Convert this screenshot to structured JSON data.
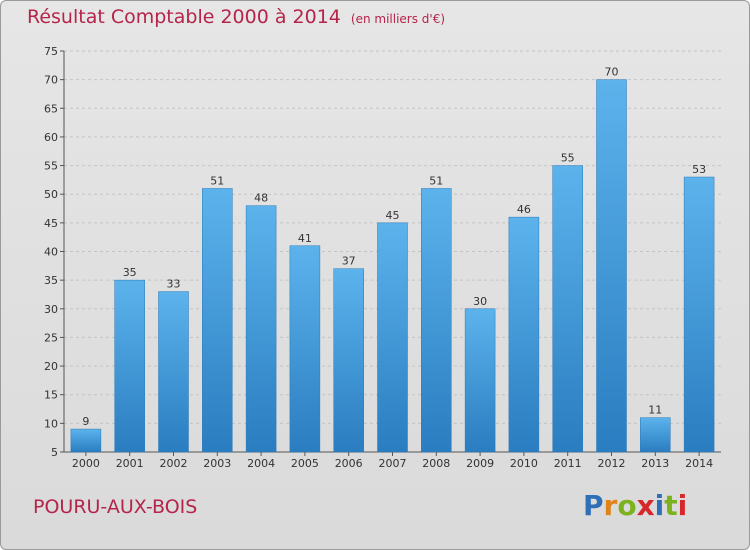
{
  "title": "Résultat Comptable 2000 à 2014",
  "unit": "(en milliers d'€)",
  "place": "POURU-AUX-BOIS",
  "brand": {
    "letters": [
      "P",
      "r",
      "o",
      "x",
      "i",
      "t",
      "i"
    ],
    "colors": [
      "#2f6fb8",
      "#e0841a",
      "#7cb21e",
      "#d6282a",
      "#2f6fb8",
      "#7cb21e",
      "#d6282a"
    ]
  },
  "colors": {
    "bar": "#5aaee8",
    "bar_dark": "#2a7fc1",
    "title": "#b5244a"
  },
  "chart_data": {
    "type": "bar",
    "title": "Résultat Comptable 2000 à 2014",
    "xlabel": "",
    "ylabel": "",
    "categories": [
      "2000",
      "2001",
      "2002",
      "2003",
      "2004",
      "2005",
      "2006",
      "2007",
      "2008",
      "2009",
      "2010",
      "2011",
      "2012",
      "2013",
      "2014"
    ],
    "values": [
      9,
      35,
      33,
      51,
      48,
      41,
      37,
      45,
      51,
      30,
      46,
      55,
      70,
      11,
      53
    ],
    "ylim": [
      5,
      75
    ],
    "yticks": [
      5,
      10,
      15,
      20,
      25,
      30,
      35,
      40,
      45,
      50,
      55,
      60,
      65,
      70,
      75
    ],
    "grid": "horizontal dashed"
  }
}
